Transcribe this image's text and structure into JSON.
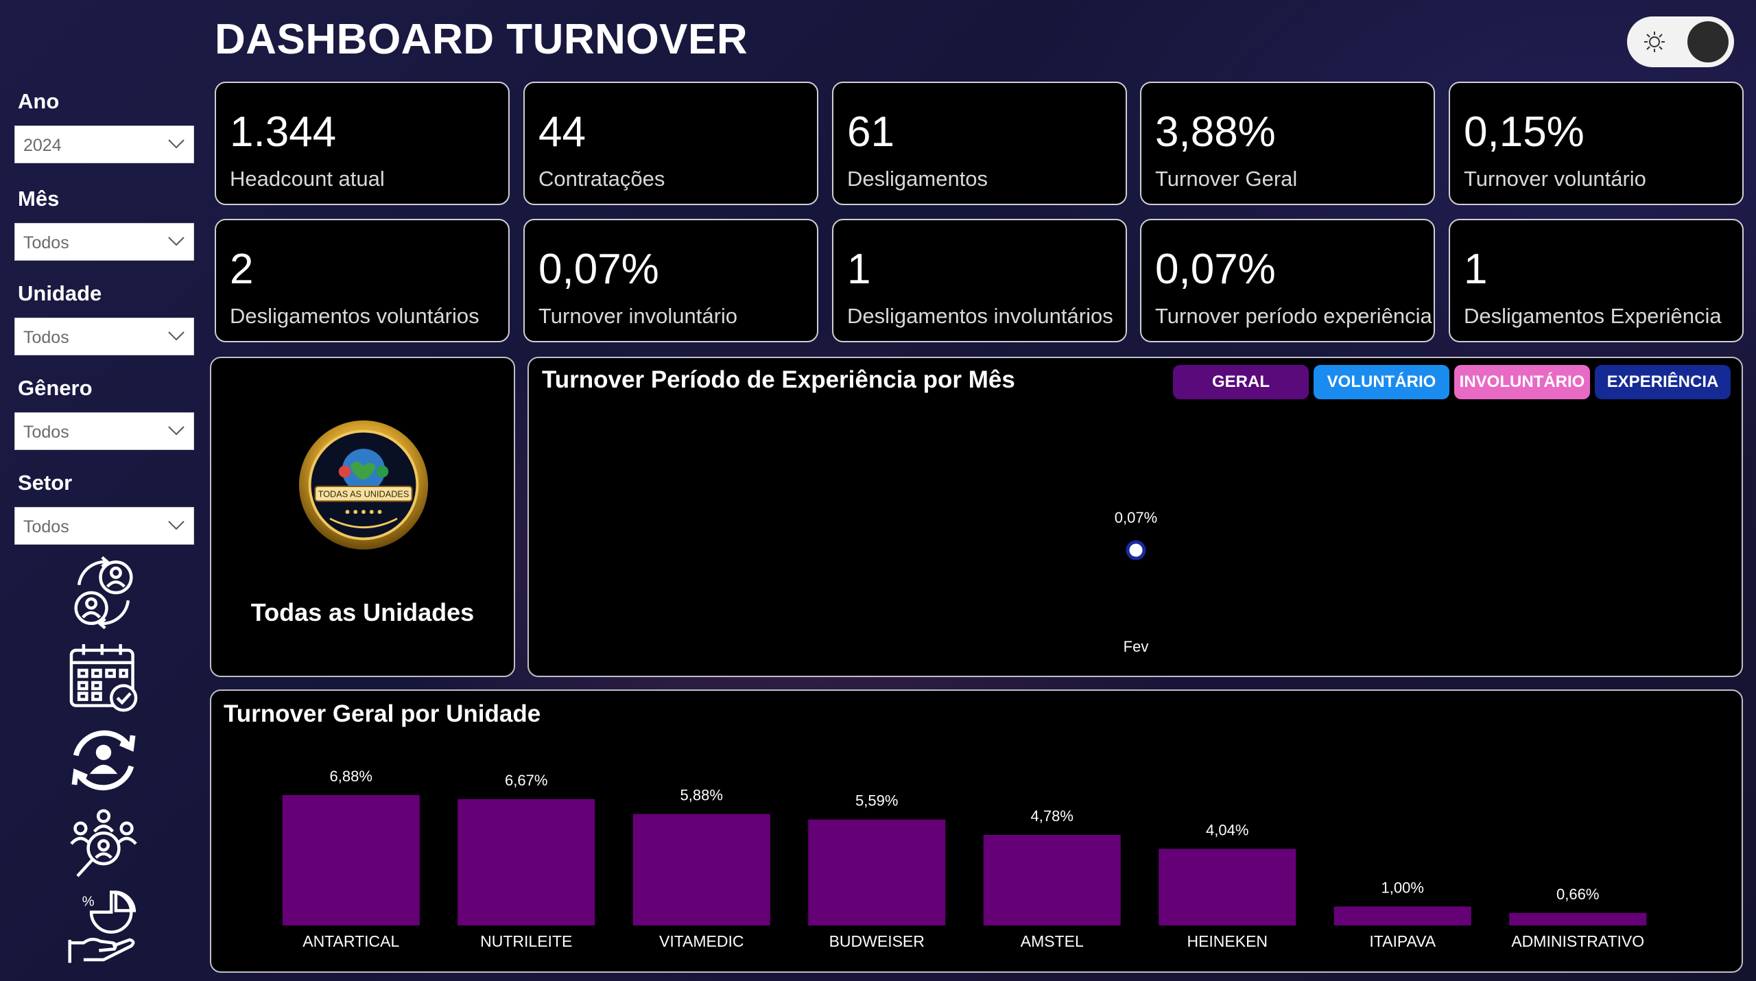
{
  "header": {
    "title": "DASHBOARD TURNOVER"
  },
  "theme_toggle": {
    "icon": "sun-icon"
  },
  "filters": [
    {
      "label": "Ano",
      "value": "2024"
    },
    {
      "label": "Mês",
      "value": "Todos"
    },
    {
      "label": "Unidade",
      "value": "Todos"
    },
    {
      "label": "Gênero",
      "value": "Todos"
    },
    {
      "label": "Setor",
      "value": "Todos"
    }
  ],
  "nav_icons": [
    "people-cycle-icon",
    "calendar-check-icon",
    "person-rotate-icon",
    "team-search-icon",
    "percent-hand-icon"
  ],
  "kpis": [
    {
      "value": "1.344",
      "label": "Headcount atual"
    },
    {
      "value": "44",
      "label": "Contratações"
    },
    {
      "value": "61",
      "label": "Desligamentos"
    },
    {
      "value": "3,88%",
      "label": "Turnover Geral"
    },
    {
      "value": "0,15%",
      "label": "Turnover voluntário"
    },
    {
      "value": "2",
      "label": "Desligamentos voluntários"
    },
    {
      "value": "0,07%",
      "label": "Turnover involuntário"
    },
    {
      "value": "1",
      "label": "Desligamentos involuntários"
    },
    {
      "value": "0,07%",
      "label": "Turnover período experiência"
    },
    {
      "value": "1",
      "label": "Desligamentos Experiência"
    }
  ],
  "unit_card": {
    "name": "Todas as Unidades",
    "logo_text": "TODAS AS UNIDADES"
  },
  "line_panel": {
    "title": "Turnover Período de Experiência por Mês",
    "buttons": [
      {
        "label": "GERAL",
        "color": "#5a0a7a"
      },
      {
        "label": "VOLUNTÁRIO",
        "color": "#1a8cf0"
      },
      {
        "label": "INVOLUNTÁRIO",
        "color": "#e86ac4"
      },
      {
        "label": "EXPERIÊNCIA",
        "color": "#152a94"
      }
    ]
  },
  "bar_panel": {
    "title": "Turnover Geral por Unidade"
  },
  "chart_data": [
    {
      "type": "line",
      "title": "Turnover Período de Experiência por Mês",
      "categories": [
        "Fev"
      ],
      "values": [
        0.07
      ],
      "data_labels": [
        "0,07%"
      ],
      "marker_color": "#1b2a9a"
    },
    {
      "type": "bar",
      "title": "Turnover Geral por Unidade",
      "categories": [
        "ANTARTICAL",
        "NUTRILEITE",
        "VITAMEDIC",
        "BUDWEISER",
        "AMSTEL",
        "HEINEKEN",
        "ITAIPAVA",
        "ADMINISTRATIVO"
      ],
      "values": [
        6.88,
        6.67,
        5.88,
        5.59,
        4.78,
        4.04,
        1.0,
        0.66
      ],
      "data_labels": [
        "6,88%",
        "6,67%",
        "5,88%",
        "5,59%",
        "4,78%",
        "4,04%",
        "1,00%",
        "0,66%"
      ],
      "bar_color": "#660077"
    }
  ]
}
